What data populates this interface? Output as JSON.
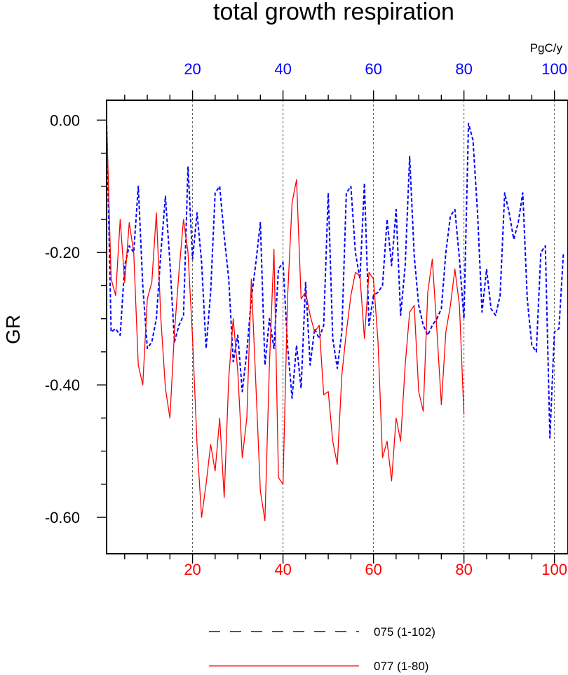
{
  "chart_data": {
    "type": "line",
    "title": "total growth respiration",
    "ylabel": "GR",
    "units": "PgC/y",
    "ylim": [
      -0.655,
      0.03
    ],
    "y_ticks": [
      "0.00",
      "-0.20",
      "-0.40",
      "-0.60"
    ],
    "y_tick_values": [
      0.0,
      -0.2,
      -0.4,
      -0.6
    ],
    "grid": "vertical dashed lines at x = 20, 40, 60, 80, 100",
    "legend_position": "bottom",
    "x_axes": [
      {
        "position": "top",
        "color": "#0000ff",
        "xlim": [
          1,
          103
        ],
        "ticks": [
          20,
          40,
          60,
          80,
          100
        ]
      },
      {
        "position": "bottom",
        "color": "#ff0000",
        "xlim": [
          1,
          103
        ],
        "ticks": [
          20,
          40,
          60,
          80,
          100
        ]
      }
    ],
    "series": [
      {
        "name": "075 (1-102)",
        "color": "#0000ff",
        "style": "dashed",
        "x_start": 1,
        "values": [
          0.0,
          -0.32,
          -0.315,
          -0.325,
          -0.22,
          -0.19,
          -0.2,
          -0.1,
          -0.25,
          -0.345,
          -0.335,
          -0.3,
          -0.2,
          -0.115,
          -0.215,
          -0.335,
          -0.31,
          -0.295,
          -0.07,
          -0.21,
          -0.14,
          -0.215,
          -0.345,
          -0.26,
          -0.11,
          -0.1,
          -0.175,
          -0.24,
          -0.365,
          -0.325,
          -0.41,
          -0.35,
          -0.27,
          -0.215,
          -0.155,
          -0.37,
          -0.3,
          -0.345,
          -0.225,
          -0.215,
          -0.34,
          -0.42,
          -0.34,
          -0.405,
          -0.245,
          -0.37,
          -0.315,
          -0.33,
          -0.31,
          -0.11,
          -0.33,
          -0.375,
          -0.32,
          -0.11,
          -0.1,
          -0.2,
          -0.24,
          -0.095,
          -0.31,
          -0.265,
          -0.26,
          -0.25,
          -0.15,
          -0.22,
          -0.135,
          -0.295,
          -0.22,
          -0.055,
          -0.205,
          -0.28,
          -0.31,
          -0.325,
          -0.31,
          -0.3,
          -0.285,
          -0.2,
          -0.145,
          -0.135,
          -0.21,
          -0.3,
          -0.005,
          -0.03,
          -0.14,
          -0.29,
          -0.225,
          -0.285,
          -0.295,
          -0.265,
          -0.11,
          -0.14,
          -0.18,
          -0.155,
          -0.11,
          -0.27,
          -0.34,
          -0.35,
          -0.2,
          -0.19,
          -0.48,
          -0.32,
          -0.315,
          -0.2
        ]
      },
      {
        "name": "077 (1-80)",
        "color": "#ff0000",
        "style": "solid",
        "x_start": 1,
        "values": [
          0.0,
          -0.24,
          -0.265,
          -0.15,
          -0.245,
          -0.155,
          -0.2,
          -0.37,
          -0.4,
          -0.27,
          -0.245,
          -0.14,
          -0.3,
          -0.405,
          -0.45,
          -0.32,
          -0.23,
          -0.15,
          -0.2,
          -0.33,
          -0.49,
          -0.6,
          -0.55,
          -0.49,
          -0.53,
          -0.45,
          -0.57,
          -0.39,
          -0.3,
          -0.38,
          -0.51,
          -0.45,
          -0.24,
          -0.4,
          -0.56,
          -0.605,
          -0.37,
          -0.195,
          -0.54,
          -0.55,
          -0.27,
          -0.125,
          -0.09,
          -0.27,
          -0.26,
          -0.295,
          -0.32,
          -0.31,
          -0.415,
          -0.41,
          -0.485,
          -0.52,
          -0.385,
          -0.32,
          -0.265,
          -0.23,
          -0.235,
          -0.33,
          -0.23,
          -0.24,
          -0.335,
          -0.51,
          -0.485,
          -0.545,
          -0.45,
          -0.485,
          -0.37,
          -0.29,
          -0.28,
          -0.41,
          -0.44,
          -0.26,
          -0.21,
          -0.315,
          -0.43,
          -0.32,
          -0.28,
          -0.225,
          -0.28,
          -0.445
        ]
      }
    ]
  }
}
